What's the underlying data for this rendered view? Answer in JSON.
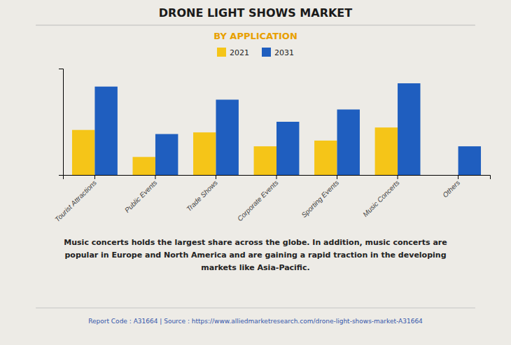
{
  "chart_data": {
    "type": "bar",
    "title": "DRONE LIGHT SHOWS MARKET",
    "subtitle": "BY APPLICATION",
    "categories": [
      "Tourist Attractions",
      "Public Events",
      "Trade Shows",
      "Corporate Events",
      "Sporting Events",
      "Music Concerts",
      "Others"
    ],
    "series": [
      {
        "name": "2021",
        "color": "#F5C518",
        "values": [
          5.5,
          2.2,
          5.2,
          3.5,
          4.2,
          5.8,
          0.0
        ]
      },
      {
        "name": "2031",
        "color": "#1F5EBF",
        "values": [
          10.8,
          5.0,
          9.2,
          6.5,
          8.0,
          11.2,
          3.5
        ]
      }
    ],
    "ylim": [
      0,
      13
    ],
    "yticks": [],
    "grid": false,
    "legend": "top",
    "tick_labels": "x",
    "annotations": [
      "Music concerts holds the largest share across the globe. In addition, music concerts are\npopular in Europe and North America and are gaining a rapid traction in the developing\nmarkets like Asia-Pacific.",
      "Report Code : A31664  |  Source : https://www.alliedmarketresearch.com/drone-light-shows-market-A31664"
    ]
  }
}
